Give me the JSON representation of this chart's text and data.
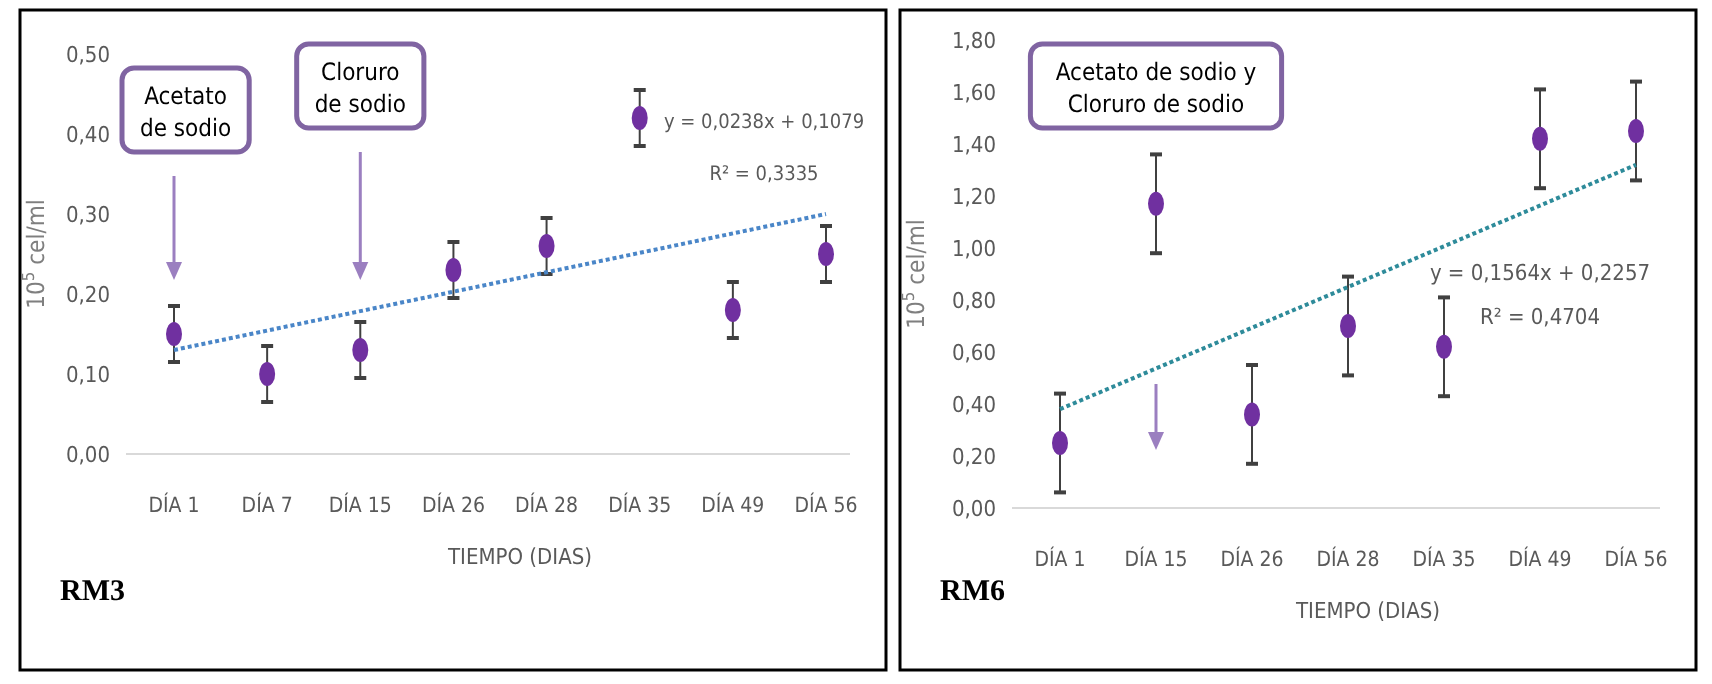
{
  "chart_data": [
    {
      "type": "scatter",
      "title": "RM3",
      "xlabel": "TIEMPO (DIAS)",
      "ylabel": "10$^{5}$ cel/ml",
      "categories": [
        "DÍA 1",
        "DÍA 7",
        "DÍA 15",
        "DÍA 26",
        "DÍA 28",
        "DÍA 35",
        "DÍA 49",
        "DÍA 56"
      ],
      "series": [
        {
          "type": "scatter",
          "marker": "circle",
          "color": "#7030a0",
          "values": [
            0.15,
            0.1,
            0.13,
            0.23,
            0.26,
            0.42,
            0.18,
            0.25
          ],
          "errors": [
            0.035,
            0.035,
            0.035,
            0.035,
            0.035,
            0.035,
            0.035,
            0.035
          ]
        },
        {
          "type": "line",
          "marker": "none",
          "color": "#4a86c8",
          "line_style": "dotted",
          "x": [
            "DÍA 1",
            "DÍA 56"
          ],
          "values": [
            0.13,
            0.3
          ]
        }
      ],
      "ylim": [
        0,
        0.5
      ],
      "yticks": [
        {
          "value": 0,
          "label": "0,00"
        },
        {
          "value": 0.1,
          "label": "0,10"
        },
        {
          "value": 0.2,
          "label": "0,20"
        },
        {
          "value": 0.3,
          "label": "0,30"
        },
        {
          "value": 0.4,
          "label": "0,40"
        },
        {
          "value": 0.5,
          "label": "0,50"
        }
      ],
      "annotations": [
        "Acetato de sodio",
        "Cloruro de sodio",
        "y = 0,0238x + 0,1079",
        "R² = 0,3335"
      ]
    },
    {
      "type": "scatter",
      "title": "RM6",
      "xlabel": "TIEMPO (DIAS)",
      "ylabel": "10$^{5}$ cel/ml",
      "categories": [
        "DÍA 1",
        "DÍA 15",
        "DÍA 26",
        "DÍA 28",
        "DÍA 35",
        "DÍA 49",
        "DÍA 56"
      ],
      "series": [
        {
          "type": "scatter",
          "marker": "circle",
          "color": "#7030a0",
          "values": [
            0.25,
            1.17,
            0.36,
            0.7,
            0.62,
            1.42,
            1.45
          ],
          "errors": [
            0.19,
            0.19,
            0.19,
            0.19,
            0.19,
            0.19,
            0.19
          ]
        },
        {
          "type": "line",
          "marker": "none",
          "color": "#2e8b9a",
          "line_style": "dotted",
          "x": [
            "DÍA 1",
            "DÍA 56"
          ],
          "values": [
            0.38,
            1.32
          ]
        }
      ],
      "ylim": [
        0,
        1.8
      ],
      "yticks": [
        {
          "value": 0,
          "label": "0,00"
        },
        {
          "value": 0.2,
          "label": "0,20"
        },
        {
          "value": 0.4,
          "label": "0,40"
        },
        {
          "value": 0.6,
          "label": "0,60"
        },
        {
          "value": 0.8,
          "label": "0,80"
        },
        {
          "value": 1.0,
          "label": "1,00"
        },
        {
          "value": 1.2,
          "label": "1,20"
        },
        {
          "value": 1.4,
          "label": "1,40"
        },
        {
          "value": 1.6,
          "label": "1,60"
        },
        {
          "value": 1.8,
          "label": "1,80"
        }
      ],
      "annotations": [
        "Acetato de sodio y Cloruro de sodio",
        "y = 0,1564x + 0,2257",
        "R² = 0,4704"
      ]
    }
  ]
}
